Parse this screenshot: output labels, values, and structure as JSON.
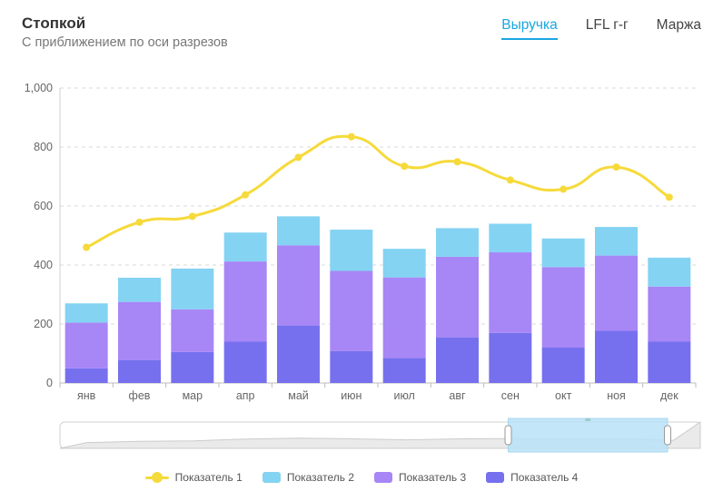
{
  "header": {
    "title": "Стопкой",
    "subtitle": "С приближением по оси разрезов"
  },
  "tabs": [
    {
      "label": "Выручка",
      "active": true
    },
    {
      "label": "LFL г-г",
      "active": false
    },
    {
      "label": "Маржа",
      "active": false
    }
  ],
  "colors": {
    "line": "#f6da3b",
    "series2": "#84d3f2",
    "series3": "#a786f6",
    "series4": "#7670ee",
    "grid": "#d8d8d8",
    "zoom_fill": "#b8e2f7"
  },
  "chart_data": {
    "type": "bar",
    "stacked": true,
    "categories": [
      "янв",
      "фев",
      "мар",
      "апр",
      "май",
      "июн",
      "июл",
      "авг",
      "сен",
      "окт",
      "ноя",
      "дек"
    ],
    "ylim": [
      0,
      1000
    ],
    "yticks": [
      0,
      200,
      400,
      600,
      800,
      1000
    ],
    "ytick_labels": [
      "0",
      "200",
      "400",
      "600",
      "800",
      "1,000"
    ],
    "grid": true,
    "series": [
      {
        "name": "Показатель 4",
        "type": "bar",
        "values": [
          50,
          78,
          105,
          140,
          195,
          108,
          85,
          155,
          170,
          120,
          177,
          140
        ]
      },
      {
        "name": "Показатель 3",
        "type": "bar",
        "values": [
          155,
          197,
          145,
          272,
          272,
          272,
          273,
          273,
          273,
          273,
          255,
          187
        ]
      },
      {
        "name": "Показатель 2",
        "type": "bar",
        "values": [
          65,
          82,
          138,
          98,
          98,
          140,
          97,
          97,
          97,
          97,
          97,
          98
        ]
      },
      {
        "name": "Показатель 1",
        "type": "line",
        "values": [
          460,
          545,
          565,
          638,
          765,
          835,
          735,
          750,
          688,
          657,
          732,
          630
        ]
      }
    ],
    "legend_position": "bottom",
    "zoom": {
      "start_fraction": 0.7,
      "end_fraction": 1.0
    }
  }
}
